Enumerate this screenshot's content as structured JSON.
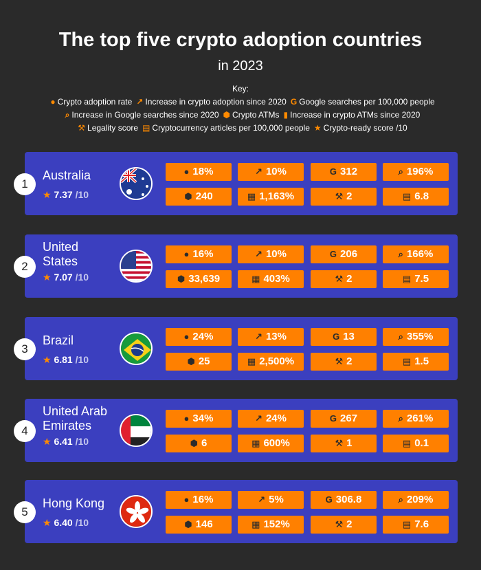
{
  "title": "The top five crypto adoption countries",
  "subtitle": "in 2023",
  "key": {
    "label": "Key:",
    "items": [
      {
        "icon": "person-icon",
        "glyph": "👤",
        "label": "Crypto adoption rate"
      },
      {
        "icon": "line-chart-icon",
        "glyph": "📈",
        "label": "Increase in crypto adoption since 2020"
      },
      {
        "icon": "google-icon",
        "glyph": "G",
        "label": "Google searches per 100,000 people"
      },
      {
        "icon": "search-icon",
        "glyph": "🔍",
        "label": "Increase in Google searches since 2020"
      },
      {
        "icon": "atm-icon",
        "glyph": "⬢",
        "label": "Crypto ATMs"
      },
      {
        "icon": "calendar-icon",
        "glyph": "▮",
        "label": "Increase in crypto ATMs since 2020"
      },
      {
        "icon": "gavel-icon",
        "glyph": "⚒",
        "label": "Legality score"
      },
      {
        "icon": "newspaper-icon",
        "glyph": "▤",
        "label": "Cryptocurrency articles per 100,000 people"
      },
      {
        "icon": "star-icon",
        "glyph": "★",
        "label": "Crypto-ready score /10"
      }
    ]
  },
  "colors": {
    "background": "#2a2a2a",
    "card": "#3b3fbf",
    "accent": "#ff8000"
  },
  "countries": [
    {
      "rank": "1",
      "name": "Australia",
      "score": "7.37",
      "out_of": "/10",
      "values": [
        "18%",
        "10%",
        "312",
        "196%",
        "240",
        "1,163%",
        "2",
        "6.8"
      ]
    },
    {
      "rank": "2",
      "name": "United States",
      "score": "7.07",
      "out_of": "/10",
      "values": [
        "16%",
        "10%",
        "206",
        "166%",
        "33,639",
        "403%",
        "2",
        "7.5"
      ]
    },
    {
      "rank": "3",
      "name": "Brazil",
      "score": "6.81",
      "out_of": "/10",
      "values": [
        "24%",
        "13%",
        "13",
        "355%",
        "25",
        "2,500%",
        "2",
        "1.5"
      ]
    },
    {
      "rank": "4",
      "name": "United Arab Emirates",
      "score": "6.41",
      "out_of": "/10",
      "values": [
        "34%",
        "24%",
        "267",
        "261%",
        "6",
        "600%",
        "1",
        "0.1"
      ]
    },
    {
      "rank": "5",
      "name": "Hong Kong",
      "score": "6.40",
      "out_of": "/10",
      "values": [
        "16%",
        "5%",
        "306.8",
        "209%",
        "146",
        "152%",
        "2",
        "7.6"
      ]
    }
  ]
}
